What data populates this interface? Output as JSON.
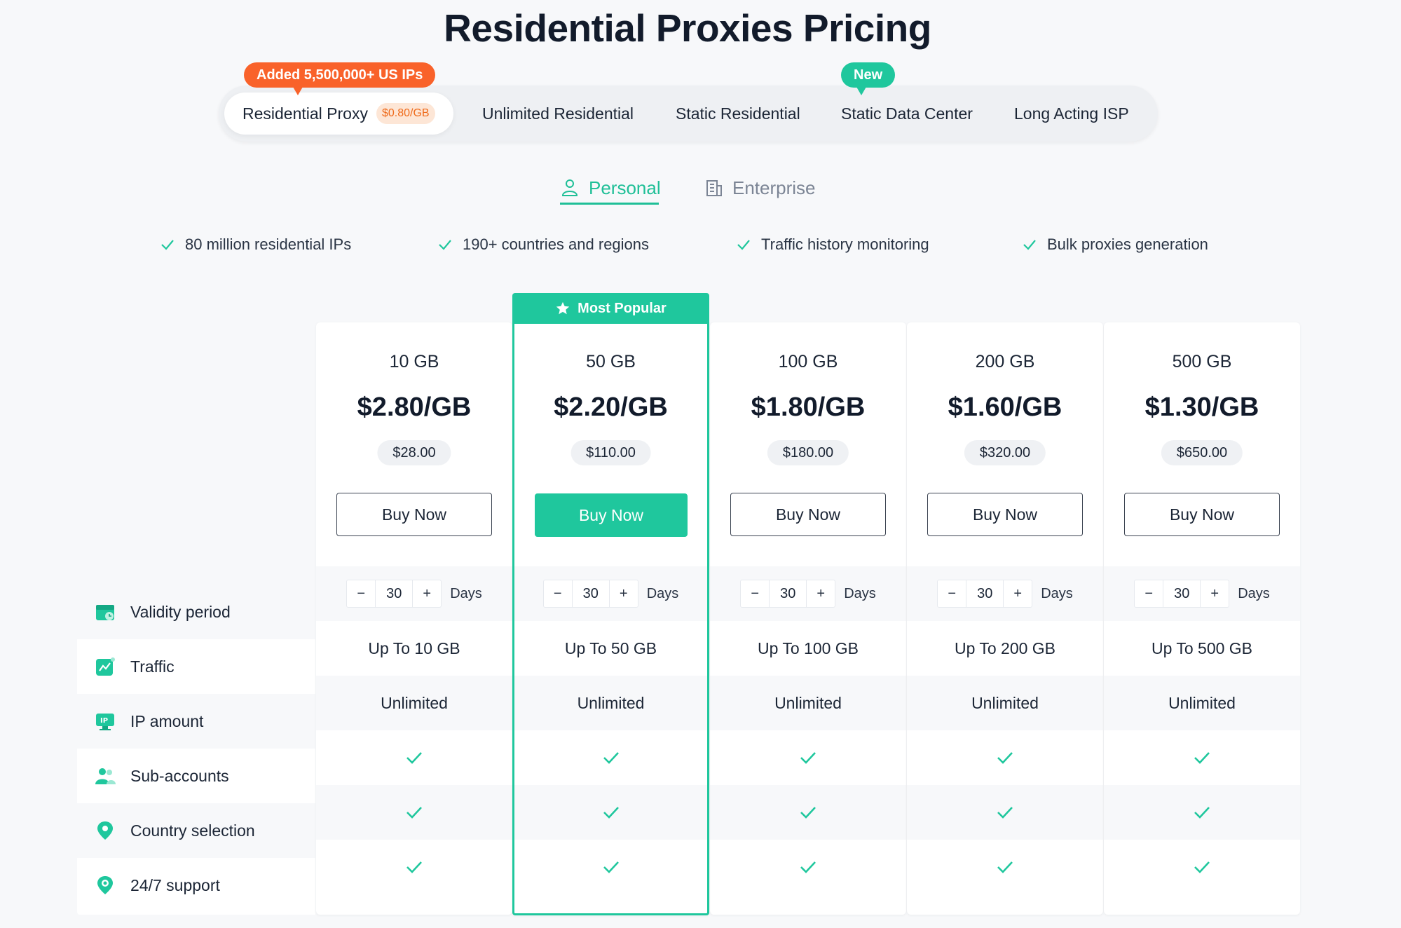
{
  "page": {
    "title": "Residential Proxies Pricing"
  },
  "product_tabs": [
    {
      "label": "Residential Proxy",
      "price": "$0.80/GB",
      "active": true
    },
    {
      "label": "Unlimited Residential"
    },
    {
      "label": "Static Residential"
    },
    {
      "label": "Static Data Center"
    },
    {
      "label": "Long Acting ISP"
    }
  ],
  "badges": {
    "residential": "Added 5,500,000+ US IPs",
    "datacenter": "New"
  },
  "segments": {
    "personal": "Personal",
    "enterprise": "Enterprise",
    "active": "personal"
  },
  "features": [
    "80 million residential IPs",
    "190+ countries and regions",
    "Traffic history monitoring",
    "Bulk proxies generation"
  ],
  "popular_label": "Most Popular",
  "row_labels": [
    {
      "label": "Validity period",
      "icon": "calendar-icon"
    },
    {
      "label": "Traffic",
      "icon": "chart-icon"
    },
    {
      "label": "IP amount",
      "icon": "ip-icon"
    },
    {
      "label": "Sub-accounts",
      "icon": "users-icon"
    },
    {
      "label": "Country selection",
      "icon": "location-pin-icon"
    },
    {
      "label": "24/7 support",
      "icon": "support-icon"
    }
  ],
  "plans": [
    {
      "gb": "10 GB",
      "per_gb": "$2.80/GB",
      "total": "$28.00",
      "buy": "Buy Now",
      "days": "30",
      "days_unit": "Days",
      "traffic": "Up To 10 GB",
      "ip_amount": "Unlimited"
    },
    {
      "gb": "50 GB",
      "per_gb": "$2.20/GB",
      "total": "$110.00",
      "buy": "Buy Now",
      "days": "30",
      "days_unit": "Days",
      "traffic": "Up To 50 GB",
      "ip_amount": "Unlimited",
      "popular": true
    },
    {
      "gb": "100 GB",
      "per_gb": "$1.80/GB",
      "total": "$180.00",
      "buy": "Buy Now",
      "days": "30",
      "days_unit": "Days",
      "traffic": "Up To 100 GB",
      "ip_amount": "Unlimited"
    },
    {
      "gb": "200 GB",
      "per_gb": "$1.60/GB",
      "total": "$320.00",
      "buy": "Buy Now",
      "days": "30",
      "days_unit": "Days",
      "traffic": "Up To 200 GB",
      "ip_amount": "Unlimited"
    },
    {
      "gb": "500 GB",
      "per_gb": "$1.30/GB",
      "total": "$650.00",
      "buy": "Buy Now",
      "days": "30",
      "days_unit": "Days",
      "traffic": "Up To 500 GB",
      "ip_amount": "Unlimited"
    }
  ],
  "stepper": {
    "minus": "−",
    "plus": "+"
  },
  "colors": {
    "accent": "#1fc79d",
    "badge_orange": "#f9622a",
    "text": "#1b2535"
  }
}
